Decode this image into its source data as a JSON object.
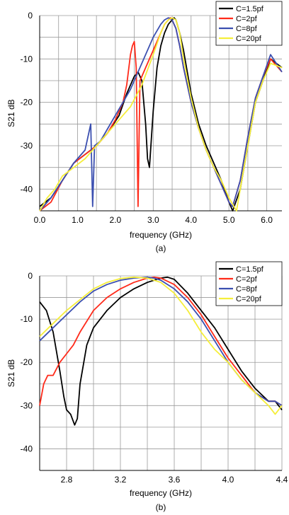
{
  "chart_data": [
    {
      "type": "line",
      "caption_letter": "a",
      "xlabel": "frequency (GHz)",
      "ylabel": "S21 dB",
      "xlim": [
        0.0,
        6.4
      ],
      "ylim": [
        -45,
        0
      ],
      "xticks": [
        "0.0",
        "1.0",
        "2.0",
        "3.0",
        "4.0",
        "5.0",
        "6.0"
      ],
      "yticks": [
        "0",
        "-10",
        "-20",
        "-30",
        "-40"
      ],
      "grid": true,
      "legend_position": "top-right",
      "series": [
        {
          "name": "C=1.5pf",
          "color": "#000000",
          "x": [
            0.0,
            0.3,
            0.6,
            0.9,
            1.2,
            1.5,
            1.8,
            2.1,
            2.3,
            2.5,
            2.6,
            2.7,
            2.8,
            2.85,
            2.9,
            3.0,
            3.1,
            3.2,
            3.3,
            3.4,
            3.5,
            3.55,
            3.6,
            3.7,
            3.8,
            3.9,
            4.0,
            4.2,
            4.4,
            4.6,
            4.8,
            5.0,
            5.1,
            5.3,
            5.5,
            5.7,
            5.9,
            6.1,
            6.4
          ],
          "y": [
            -44,
            -42,
            -38,
            -34,
            -32,
            -30,
            -27,
            -23,
            -18,
            -14,
            -13,
            -15,
            -25,
            -33,
            -35,
            -22,
            -12,
            -7,
            -4,
            -2,
            -1,
            -0.5,
            -1,
            -4,
            -8,
            -13,
            -18,
            -25,
            -30,
            -34,
            -38,
            -43,
            -45,
            -40,
            -30,
            -20,
            -15,
            -10,
            -12
          ]
        },
        {
          "name": "C=2pf",
          "color": "#ff2a1a",
          "x": [
            0.0,
            0.3,
            0.6,
            0.9,
            1.2,
            1.5,
            1.8,
            2.0,
            2.2,
            2.3,
            2.4,
            2.45,
            2.5,
            2.55,
            2.6,
            2.65,
            2.7,
            2.8,
            3.0,
            3.2,
            3.3,
            3.4,
            3.45,
            3.5,
            3.6,
            3.7,
            3.8,
            4.0,
            4.2,
            4.4,
            4.6,
            4.8,
            5.0,
            5.1,
            5.3,
            5.5,
            5.7,
            5.9,
            6.1,
            6.4
          ],
          "y": [
            -45,
            -43,
            -38,
            -34,
            -32,
            -30,
            -27,
            -24,
            -20,
            -16,
            -9,
            -7,
            -6,
            -12,
            -44,
            -15,
            -14,
            -12,
            -8,
            -4,
            -2,
            -1,
            -0.5,
            -1,
            -3,
            -7,
            -12,
            -20,
            -26,
            -31,
            -35,
            -39,
            -43,
            -44,
            -38,
            -28,
            -19,
            -14,
            -10,
            -13
          ]
        },
        {
          "name": "C=8pf",
          "color": "#3b4fb0",
          "x": [
            0.0,
            0.3,
            0.6,
            0.9,
            1.2,
            1.35,
            1.4,
            1.45,
            1.6,
            1.8,
            2.0,
            2.2,
            2.4,
            2.6,
            2.8,
            3.0,
            3.2,
            3.3,
            3.4,
            3.5,
            3.6,
            3.7,
            3.8,
            4.0,
            4.2,
            4.4,
            4.6,
            4.8,
            5.0,
            5.1,
            5.3,
            5.5,
            5.7,
            5.9,
            6.1,
            6.4
          ],
          "y": [
            -45,
            -42,
            -38,
            -34,
            -31,
            -25,
            -44,
            -30,
            -29,
            -26,
            -23,
            -20,
            -17,
            -13,
            -9,
            -5,
            -2,
            -1,
            -0.5,
            -1,
            -3,
            -7,
            -12,
            -20,
            -26,
            -31,
            -35,
            -39,
            -43,
            -44,
            -38,
            -28,
            -19,
            -14,
            -9,
            -13
          ]
        },
        {
          "name": "C=20pf",
          "color": "#f5ee3a",
          "x": [
            0.0,
            0.2,
            0.4,
            0.6,
            0.9,
            1.2,
            1.5,
            1.8,
            2.1,
            2.4,
            2.7,
            3.0,
            3.2,
            3.3,
            3.4,
            3.5,
            3.6,
            3.7,
            3.8,
            4.0,
            4.2,
            4.4,
            4.6,
            4.8,
            5.0,
            5.2,
            5.3,
            5.5,
            5.7,
            5.9,
            6.1,
            6.4
          ],
          "y": [
            -45,
            -42,
            -40,
            -37,
            -35,
            -33,
            -30,
            -27,
            -24,
            -21,
            -16,
            -9,
            -4,
            -2,
            -1,
            -0.5,
            -1,
            -4,
            -10,
            -19,
            -26,
            -31,
            -35,
            -38,
            -42,
            -45,
            -40,
            -30,
            -20,
            -15,
            -11,
            -12
          ]
        }
      ]
    },
    {
      "type": "line",
      "caption_letter": "b",
      "xlabel": "frequency (GHz)",
      "ylabel": "S21 dB",
      "xlim": [
        2.6,
        4.4
      ],
      "ylim": [
        -45,
        0
      ],
      "xticks": [
        "2.8",
        "3.2",
        "3.6",
        "4.0",
        "4.4"
      ],
      "yticks": [
        "0",
        "-10",
        "-20",
        "-30",
        "-40"
      ],
      "grid": true,
      "legend_position": "top-right",
      "series": [
        {
          "name": "C=1.5pf",
          "color": "#000000",
          "x": [
            2.6,
            2.65,
            2.7,
            2.75,
            2.78,
            2.8,
            2.83,
            2.86,
            2.88,
            2.9,
            2.95,
            3.0,
            3.1,
            3.2,
            3.3,
            3.4,
            3.5,
            3.55,
            3.6,
            3.7,
            3.8,
            3.9,
            4.0,
            4.1,
            4.2,
            4.3,
            4.35,
            4.4
          ],
          "y": [
            -6,
            -8,
            -13,
            -22,
            -28,
            -31,
            -32,
            -34.5,
            -33,
            -25,
            -16,
            -12,
            -8,
            -5,
            -3,
            -1.5,
            -0.5,
            -0.3,
            -0.8,
            -4,
            -8,
            -12,
            -17,
            -22,
            -26,
            -29,
            -29,
            -31
          ]
        },
        {
          "name": "C=2pf",
          "color": "#ff2a1a",
          "x": [
            2.6,
            2.63,
            2.66,
            2.7,
            2.75,
            2.8,
            2.85,
            2.9,
            3.0,
            3.1,
            3.2,
            3.3,
            3.4,
            3.45,
            3.5,
            3.6,
            3.7,
            3.8,
            3.9,
            4.0,
            4.1,
            4.2,
            4.3,
            4.35,
            4.4
          ],
          "y": [
            -30,
            -25,
            -23,
            -23,
            -20,
            -18,
            -16,
            -13,
            -8,
            -5,
            -3,
            -1.5,
            -0.5,
            -0.3,
            -0.5,
            -2,
            -5,
            -9,
            -14,
            -19,
            -23,
            -27,
            -29,
            -29,
            -30
          ]
        },
        {
          "name": "C=8pf",
          "color": "#3b4fb0",
          "x": [
            2.6,
            2.7,
            2.8,
            2.9,
            3.0,
            3.1,
            3.2,
            3.3,
            3.4,
            3.45,
            3.5,
            3.6,
            3.7,
            3.8,
            3.9,
            4.0,
            4.1,
            4.2,
            4.3,
            4.35,
            4.4
          ],
          "y": [
            -15,
            -12,
            -9,
            -6,
            -3.5,
            -2,
            -1,
            -0.5,
            -0.3,
            -0.5,
            -1,
            -3,
            -6,
            -10,
            -15,
            -20,
            -24,
            -27,
            -29,
            -29,
            -30
          ]
        },
        {
          "name": "C=20pf",
          "color": "#f5ee3a",
          "x": [
            2.6,
            2.7,
            2.8,
            2.9,
            3.0,
            3.1,
            3.2,
            3.3,
            3.4,
            3.5,
            3.6,
            3.7,
            3.8,
            3.9,
            4.0,
            4.1,
            4.2,
            4.3,
            4.35,
            4.4
          ],
          "y": [
            -14,
            -11,
            -8,
            -5.5,
            -3,
            -1.5,
            -0.6,
            -0.3,
            -0.5,
            -1.5,
            -4,
            -8,
            -13,
            -17,
            -20,
            -24,
            -27,
            -30,
            -32,
            -30
          ]
        }
      ]
    }
  ]
}
